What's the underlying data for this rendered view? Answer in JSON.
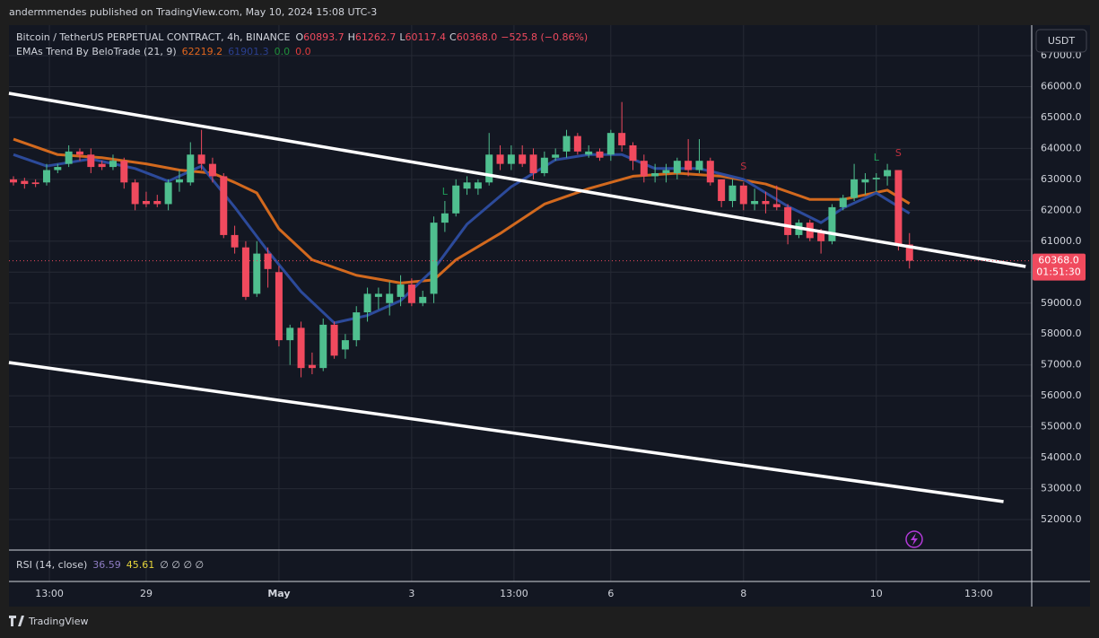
{
  "header": {
    "publisher": "andermmendes published on TradingView.com, May 10, 2024 15:08 UTC-3",
    "symbol": "Bitcoin / TetherUS PERPETUAL CONTRACT, 4h, BINANCE",
    "ohlc": [
      {
        "key": "O",
        "value": "60893.7"
      },
      {
        "key": "H",
        "value": "61262.7"
      },
      {
        "key": "L",
        "value": "60117.4"
      },
      {
        "key": "C",
        "value": "60368.0"
      }
    ],
    "change": "−525.8 (−0.86%)",
    "indicator": "EMAs Trend By BeloTrade (21, 9)",
    "indicator_values": [
      {
        "text": "62219.2",
        "color": "#e0651e"
      },
      {
        "text": "61901.3",
        "color": "#2a3f8f"
      },
      {
        "text": "0.0",
        "color": "#1f8f3a"
      },
      {
        "text": "0.0",
        "color": "#e03c3c"
      }
    ],
    "currency": "USDT",
    "rsi": {
      "label": "RSI (14, close)",
      "values": [
        {
          "text": "36.59",
          "color": "#8e7cc3"
        },
        {
          "text": "45.61",
          "color": "#e5d43a"
        }
      ],
      "empty": "∅ ∅ ∅ ∅"
    },
    "brand": "TradingView"
  },
  "chart_data": {
    "type": "candlestick",
    "up_color": "#4fbf8f",
    "down_color": "#f04a5e",
    "grid": true,
    "xlim": [
      -0.405,
      92.05
    ],
    "ylim": [
      51015,
      67986
    ],
    "yticks": [
      {
        "value": 52000,
        "label": "52000.0"
      },
      {
        "value": 53000,
        "label": "53000.0"
      },
      {
        "value": 54000,
        "label": "54000.0"
      },
      {
        "value": 55000,
        "label": "55000.0"
      },
      {
        "value": 56000,
        "label": "56000.0"
      },
      {
        "value": 57000,
        "label": "57000.0"
      },
      {
        "value": 58000,
        "label": "58000.0"
      },
      {
        "value": 59000,
        "label": "59000.0"
      },
      {
        "value": 60000,
        "label": "60000.0"
      },
      {
        "value": 61000,
        "label": "61000.0"
      },
      {
        "value": 62000,
        "label": "62000.0"
      },
      {
        "value": 63000,
        "label": "63000.0"
      },
      {
        "value": 64000,
        "label": "64000.0"
      },
      {
        "value": 65000,
        "label": "65000.0"
      },
      {
        "value": 66000,
        "label": "66000.0"
      },
      {
        "value": 67000,
        "label": "67000.0"
      }
    ],
    "xticks": [
      {
        "value": 3.25,
        "label": "13:00"
      },
      {
        "value": 12,
        "label": "29"
      },
      {
        "value": 24,
        "label": "May"
      },
      {
        "value": 36,
        "label": "3"
      },
      {
        "value": 45.25,
        "label": "13:00"
      },
      {
        "value": 54,
        "label": "6"
      },
      {
        "value": 66,
        "label": "8"
      },
      {
        "value": 78,
        "label": "10"
      },
      {
        "value": 87.25,
        "label": "13:00"
      }
    ],
    "open": [
      63000,
      62950,
      62900,
      62900,
      63300,
      63500,
      63900,
      63800,
      63500,
      63400,
      63600,
      62900,
      62300,
      62300,
      62200,
      62900,
      62900,
      63800,
      63500,
      63100,
      61200,
      60800,
      59300,
      60600,
      60000,
      57800,
      58200,
      57000,
      56900,
      58300,
      57500,
      57800,
      58700,
      59200,
      59000,
      59200,
      59600,
      59000,
      59300,
      61600,
      61900,
      62700,
      62700,
      62900,
      63800,
      63500,
      63800,
      63800,
      63200,
      63700,
      63900,
      64400,
      63800,
      63900,
      63800,
      64500,
      64100,
      63600,
      63100,
      63200,
      63200,
      63600,
      63300,
      63600,
      63000,
      62300,
      62800,
      62200,
      62300,
      62200,
      62100,
      61200,
      61600,
      61300,
      61000,
      62100,
      62400,
      62900,
      63000,
      63100,
      63300,
      60893.7
    ],
    "high": [
      63100,
      63050,
      63000,
      63500,
      63500,
      64100,
      64000,
      64000,
      63600,
      63800,
      63700,
      63000,
      62600,
      62500,
      63000,
      63300,
      64200,
      64600,
      63700,
      63200,
      61500,
      61000,
      61000,
      60800,
      60200,
      58300,
      58400,
      57400,
      58500,
      58400,
      58000,
      58900,
      59500,
      59500,
      59700,
      59900,
      59800,
      59400,
      61800,
      62300,
      63000,
      63100,
      63000,
      64500,
      64100,
      64100,
      64100,
      64000,
      63900,
      64000,
      64600,
      64500,
      64100,
      64000,
      64600,
      65500,
      64200,
      63800,
      63500,
      63500,
      63700,
      64300,
      64300,
      63700,
      63000,
      63000,
      62900,
      62700,
      62600,
      62800,
      62200,
      61700,
      61700,
      61400,
      62200,
      62500,
      63500,
      63200,
      63200,
      63500,
      63300,
      61262.7
    ],
    "low": [
      62800,
      62700,
      62750,
      62800,
      63200,
      63400,
      63600,
      63200,
      63300,
      63300,
      62700,
      62000,
      62100,
      62100,
      62000,
      62600,
      62800,
      63300,
      62900,
      61100,
      60600,
      59100,
      59200,
      59500,
      57600,
      57000,
      56600,
      56700,
      56800,
      57200,
      57200,
      57600,
      58400,
      58800,
      58600,
      58900,
      58900,
      58900,
      59000,
      61300,
      61800,
      62500,
      62500,
      62800,
      63300,
      63300,
      63400,
      63000,
      63100,
      63600,
      63700,
      63800,
      63700,
      63600,
      63600,
      63900,
      63300,
      62900,
      62900,
      62900,
      63000,
      63100,
      63200,
      62800,
      62100,
      62100,
      62000,
      62000,
      61900,
      62000,
      60900,
      61100,
      61000,
      60600,
      60900,
      62000,
      62300,
      62500,
      62600,
      62800,
      60700,
      60117.4
    ],
    "close": [
      62900,
      62850,
      62850,
      63300,
      63400,
      63900,
      63800,
      63400,
      63400,
      63600,
      62900,
      62200,
      62200,
      62200,
      62900,
      63000,
      63800,
      63500,
      63100,
      61200,
      60800,
      59200,
      60600,
      60100,
      57800,
      58200,
      56900,
      56900,
      58300,
      57300,
      57800,
      58700,
      59300,
      59300,
      59300,
      59600,
      59000,
      59200,
      61600,
      61900,
      62800,
      62900,
      62900,
      63800,
      63500,
      63800,
      63500,
      63200,
      63700,
      63800,
      64400,
      63900,
      63900,
      63700,
      64500,
      64100,
      63600,
      63100,
      63200,
      63300,
      63600,
      63300,
      63600,
      62900,
      62300,
      62800,
      62200,
      62300,
      62200,
      62100,
      61200,
      61600,
      61100,
      61000,
      62100,
      62400,
      63000,
      63000,
      63050,
      63300,
      60900,
      60368
    ],
    "series": [
      {
        "name": "EMA 21",
        "color": "#d2691e",
        "x": [
          0,
          4,
          8,
          12,
          15,
          18,
          20,
          22,
          24,
          27,
          31,
          35,
          38,
          40,
          44,
          48,
          52,
          56,
          60,
          64,
          68,
          72,
          75,
          79,
          81
        ],
        "values": [
          64300,
          63800,
          63700,
          63500,
          63300,
          63200,
          62900,
          62560,
          61400,
          60400,
          59900,
          59650,
          59750,
          60400,
          61250,
          62200,
          62700,
          63100,
          63200,
          63100,
          62850,
          62350,
          62350,
          62650,
          62219.2
        ]
      },
      {
        "name": "EMA 9",
        "color": "#2c4a9a",
        "x": [
          0,
          3,
          7,
          11,
          14,
          17,
          20,
          23,
          26,
          29,
          32,
          35,
          38,
          41,
          45,
          49,
          52,
          55,
          58,
          62,
          66,
          70,
          73,
          75,
          78,
          81
        ],
        "values": [
          63800,
          63430,
          63660,
          63350,
          62940,
          63430,
          62100,
          60680,
          59370,
          58360,
          58600,
          59080,
          60100,
          61550,
          62760,
          63630,
          63800,
          63800,
          63350,
          63350,
          63000,
          62130,
          61600,
          62070,
          62560,
          61901.3
        ]
      }
    ],
    "trendlines": [
      {
        "x": [
          -0.41,
          91.5
        ],
        "values": [
          65781,
          60183
        ],
        "color": "#ffffff"
      },
      {
        "x": [
          -0.41,
          89.5
        ],
        "values": [
          57078,
          52581
        ],
        "color": "#ffffff"
      }
    ],
    "annotations": [
      {
        "text": "L",
        "x": 39,
        "value": 62590,
        "color": "#1f9f5a"
      },
      {
        "text": "S",
        "x": 66,
        "value": 63400,
        "color": "#c0303f"
      },
      {
        "text": "L",
        "x": 78,
        "value": 63690,
        "color": "#1f9f5a"
      },
      {
        "text": "S",
        "x": 80,
        "value": 63840,
        "color": "#c0303f"
      }
    ],
    "price_tag": {
      "value": 60368,
      "label": "60368.0",
      "countdown": "01:51:30",
      "color": "#f04a5e"
    }
  }
}
